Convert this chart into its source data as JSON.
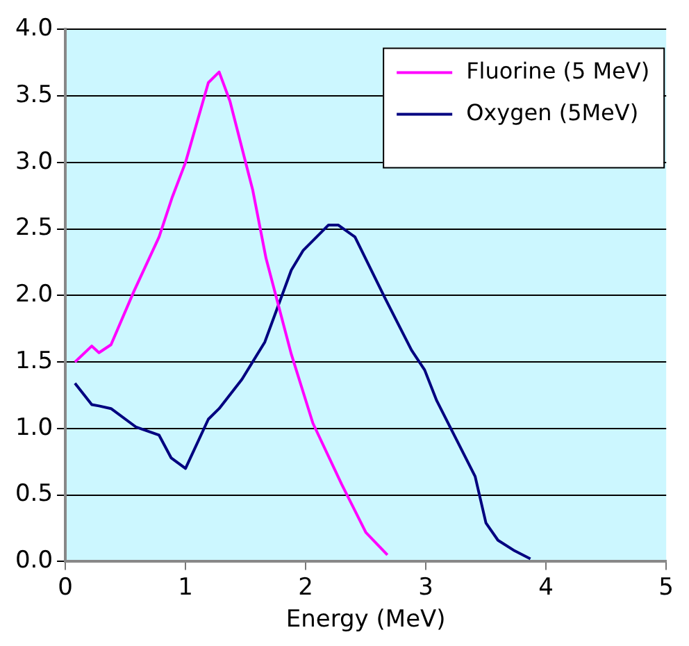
{
  "chart_data": {
    "type": "line",
    "xlabel": "Energy (MeV)",
    "xlim": [
      0,
      5
    ],
    "xticks": [
      0,
      1,
      2,
      3,
      4,
      5
    ],
    "ylim": [
      0,
      4
    ],
    "yticks": [
      {
        "value": 0,
        "label": "0.0"
      },
      {
        "value": 0.5,
        "label": "0.5"
      },
      {
        "value": 1,
        "label": "1.0"
      },
      {
        "value": 1.5,
        "label": "1.5"
      },
      {
        "value": 2,
        "label": "2.0"
      },
      {
        "value": 2.5,
        "label": "2.5"
      },
      {
        "value": 3,
        "label": "3.0"
      },
      {
        "value": 3.5,
        "label": "3.5"
      },
      {
        "value": 4,
        "label": "4.0"
      }
    ],
    "grid": "y",
    "legend": "top right",
    "marker": "none",
    "line_style": "solid",
    "series": [
      {
        "name": "Fluorine (5 MeV)",
        "color": "#ff00ff",
        "x": [
          0.08,
          0.22,
          0.28,
          0.38,
          0.57,
          0.78,
          0.89,
          1.0,
          1.19,
          1.28,
          1.37,
          1.56,
          1.67,
          1.88,
          2.06,
          2.3,
          2.5,
          2.68
        ],
        "values": [
          1.5,
          1.62,
          1.57,
          1.63,
          2.03,
          2.44,
          2.74,
          3.0,
          3.6,
          3.68,
          3.46,
          2.79,
          2.28,
          1.56,
          1.04,
          0.58,
          0.22,
          0.05
        ]
      },
      {
        "name": "Oxygen (5MeV)",
        "color": "#000080",
        "x": [
          0.08,
          0.22,
          0.28,
          0.38,
          0.59,
          0.78,
          0.88,
          1.0,
          1.19,
          1.28,
          1.47,
          1.66,
          1.88,
          1.98,
          2.19,
          2.27,
          2.41,
          2.66,
          2.88,
          2.99,
          3.09,
          3.41,
          3.5,
          3.6,
          3.74,
          3.87
        ],
        "values": [
          1.34,
          1.18,
          1.17,
          1.15,
          1.01,
          0.95,
          0.78,
          0.7,
          1.07,
          1.15,
          1.37,
          1.65,
          2.19,
          2.34,
          2.53,
          2.53,
          2.44,
          1.98,
          1.59,
          1.44,
          1.21,
          0.64,
          0.29,
          0.16,
          0.08,
          0.02
        ]
      }
    ]
  }
}
